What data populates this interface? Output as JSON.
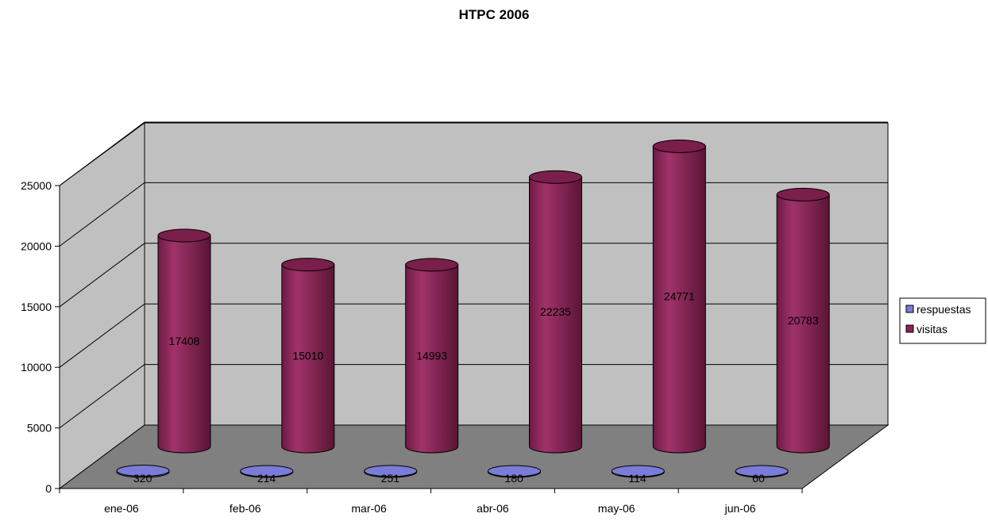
{
  "chart_data": {
    "type": "bar",
    "subtype": "3d-cylinder",
    "title": "HTPC 2006",
    "categories": [
      "ene-06",
      "feb-06",
      "mar-06",
      "abr-06",
      "may-06",
      "jun-06"
    ],
    "series": [
      {
        "name": "respuestas",
        "values": [
          320,
          214,
          251,
          180,
          114,
          60
        ],
        "color": "#7b7bd8"
      },
      {
        "name": "visitas",
        "values": [
          17408,
          15010,
          14993,
          22235,
          24771,
          20783
        ],
        "color": "#8b2252"
      }
    ],
    "yticks": [
      "0",
      "5000",
      "10000",
      "15000",
      "20000",
      "25000"
    ],
    "ylim": [
      0,
      25000
    ],
    "grid": true,
    "legend": "right",
    "colors": {
      "wall": "#c0c0c0",
      "floor": "#808080"
    }
  }
}
